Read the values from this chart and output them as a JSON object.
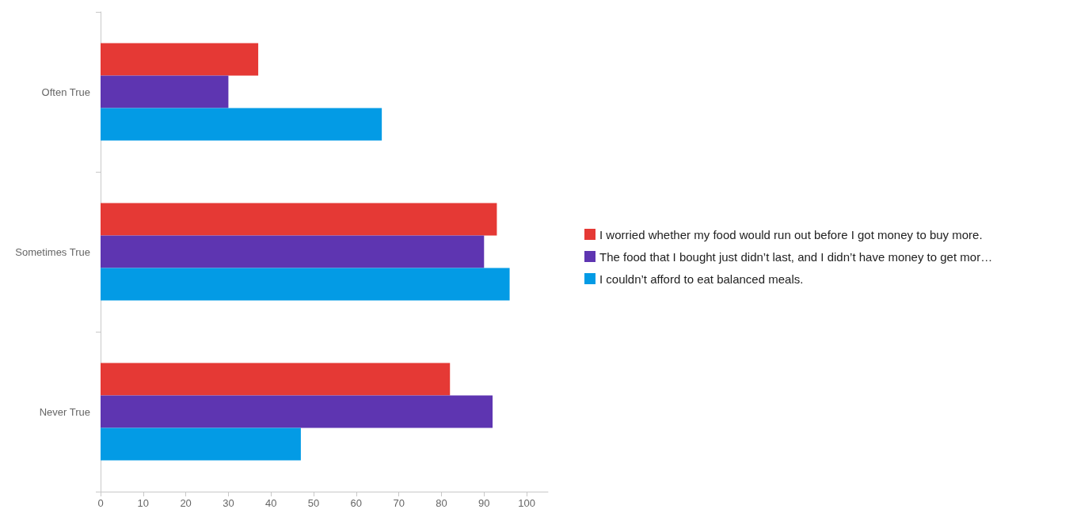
{
  "chart_data": {
    "type": "bar",
    "orientation": "horizontal",
    "categories": [
      "Often True",
      "Sometimes True",
      "Never True"
    ],
    "series": [
      {
        "name": "I worried whether my food would run out before I got money to buy more.",
        "color": "#e53935",
        "values": [
          37,
          93,
          82
        ]
      },
      {
        "name": "The food that I bought just didn’t last, and I didn’t have money to get mor…",
        "color": "#5e35b1",
        "values": [
          30,
          90,
          92
        ]
      },
      {
        "name": "I couldn’t afford to eat balanced meals.",
        "color": "#039be5",
        "values": [
          66,
          96,
          47
        ]
      }
    ],
    "xlim": [
      0,
      105
    ],
    "xticks": [
      0,
      10,
      20,
      30,
      40,
      50,
      60,
      70,
      80,
      90,
      100
    ],
    "grid": false,
    "legend": "right"
  }
}
